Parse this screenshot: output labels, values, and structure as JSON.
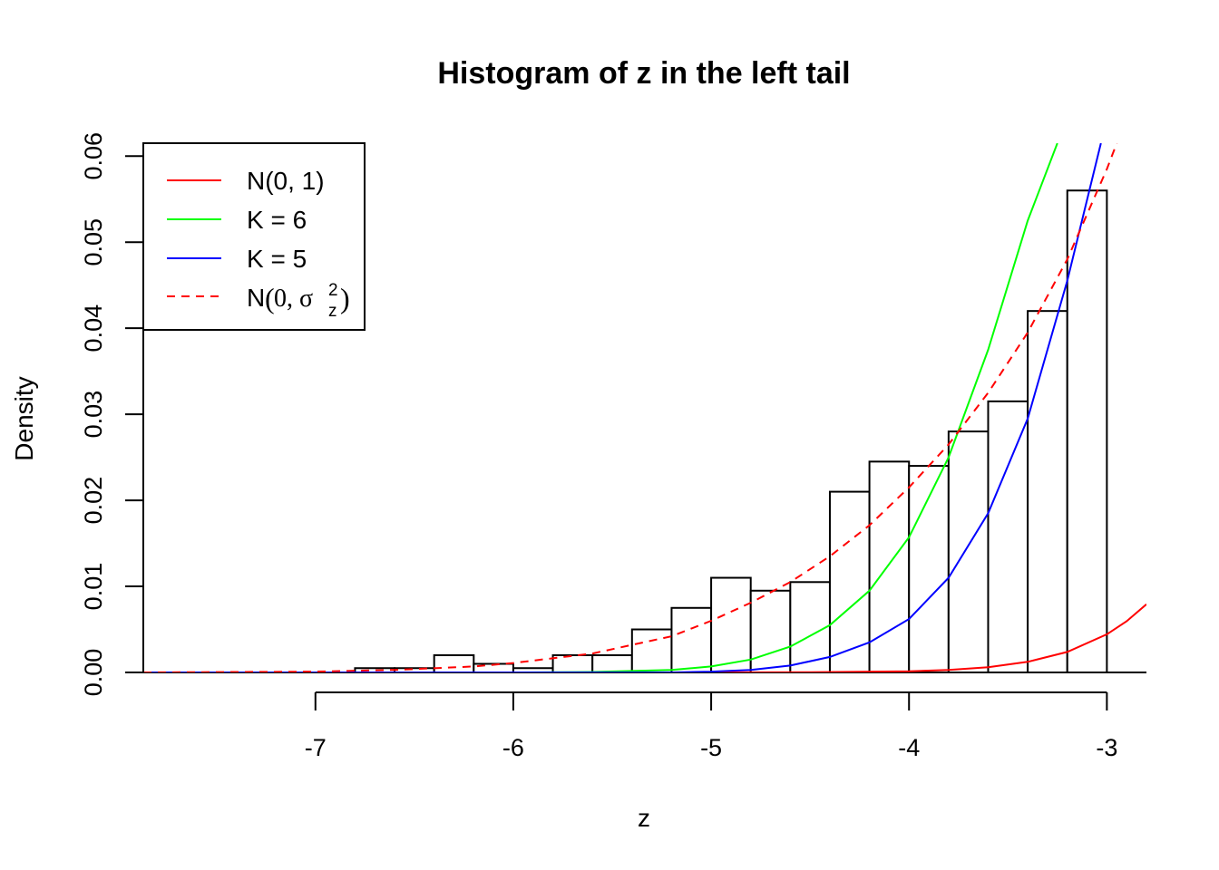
{
  "chart_data": {
    "type": "histogram",
    "title": "Histogram of z in the left tail",
    "xlabel": "z",
    "ylabel": "Density",
    "xlim": [
      -7.87,
      -2.8
    ],
    "ylim": [
      0,
      0.0615
    ],
    "x_ticks": [
      -7,
      -6,
      -5,
      -4,
      -3
    ],
    "y_ticks": [
      0.0,
      0.01,
      0.02,
      0.03,
      0.04,
      0.05,
      0.06
    ],
    "x_tick_labels": [
      "-7",
      "-6",
      "-5",
      "-4",
      "-3"
    ],
    "y_tick_labels": [
      "0.00",
      "0.01",
      "0.02",
      "0.03",
      "0.04",
      "0.05",
      "0.06"
    ],
    "bin_width": 0.2,
    "bins": [
      {
        "x0": -6.8,
        "x1": -6.6,
        "density": 0.0005
      },
      {
        "x0": -6.6,
        "x1": -6.4,
        "density": 0.0005
      },
      {
        "x0": -6.4,
        "x1": -6.2,
        "density": 0.002
      },
      {
        "x0": -6.2,
        "x1": -6.0,
        "density": 0.001
      },
      {
        "x0": -6.0,
        "x1": -5.8,
        "density": 0.0005
      },
      {
        "x0": -5.8,
        "x1": -5.6,
        "density": 0.002
      },
      {
        "x0": -5.6,
        "x1": -5.4,
        "density": 0.002
      },
      {
        "x0": -5.4,
        "x1": -5.2,
        "density": 0.005
      },
      {
        "x0": -5.2,
        "x1": -5.0,
        "density": 0.0075
      },
      {
        "x0": -5.0,
        "x1": -4.8,
        "density": 0.011
      },
      {
        "x0": -4.8,
        "x1": -4.6,
        "density": 0.0095
      },
      {
        "x0": -4.6,
        "x1": -4.4,
        "density": 0.0105
      },
      {
        "x0": -4.4,
        "x1": -4.2,
        "density": 0.021
      },
      {
        "x0": -4.2,
        "x1": -4.0,
        "density": 0.0245
      },
      {
        "x0": -4.0,
        "x1": -3.8,
        "density": 0.024
      },
      {
        "x0": -3.8,
        "x1": -3.6,
        "density": 0.028
      },
      {
        "x0": -3.6,
        "x1": -3.4,
        "density": 0.0315
      },
      {
        "x0": -3.4,
        "x1": -3.2,
        "density": 0.042
      },
      {
        "x0": -3.2,
        "x1": -3.0,
        "density": 0.056
      }
    ],
    "series": [
      {
        "name": "N(0, 1)",
        "color": "#ff0000",
        "dash": "solid",
        "x": [
          -7.87,
          -7.0,
          -6.0,
          -5.0,
          -4.5,
          -4.0,
          -3.8,
          -3.6,
          -3.4,
          -3.2,
          -3.0,
          -2.9,
          -2.8
        ],
        "y": [
          0,
          0,
          0,
          1.5e-06,
          1.6e-05,
          0.000134,
          0.00029,
          0.00061,
          0.00123,
          0.00238,
          0.00443,
          0.00595,
          0.00792
        ]
      },
      {
        "name": "K = 6",
        "color": "#00ff00",
        "dash": "solid",
        "x": [
          -7.87,
          -6.0,
          -5.6,
          -5.2,
          -5.0,
          -4.8,
          -4.6,
          -4.4,
          -4.2,
          -4.0,
          -3.8,
          -3.6,
          -3.4,
          -3.25
        ],
        "y": [
          0,
          0,
          5e-05,
          0.0003,
          0.0007,
          0.0015,
          0.003,
          0.0055,
          0.0095,
          0.0157,
          0.025,
          0.0375,
          0.0525,
          0.0615
        ]
      },
      {
        "name": "K = 5",
        "color": "#0000ff",
        "dash": "solid",
        "x": [
          -7.87,
          -5.2,
          -5.0,
          -4.8,
          -4.6,
          -4.4,
          -4.2,
          -4.0,
          -3.8,
          -3.6,
          -3.4,
          -3.2,
          -3.03
        ],
        "y": [
          0,
          0,
          0.0001,
          0.0003,
          0.0008,
          0.0018,
          0.0035,
          0.0062,
          0.011,
          0.0185,
          0.0295,
          0.0455,
          0.0615
        ]
      },
      {
        "name": "N(0, σ_z^2)",
        "color": "#ff0000",
        "dash": "dashed",
        "x": [
          -7.87,
          -7.0,
          -6.6,
          -6.2,
          -6.0,
          -5.6,
          -5.2,
          -5.0,
          -4.8,
          -4.6,
          -4.4,
          -4.2,
          -4.0,
          -3.8,
          -3.6,
          -3.4,
          -3.2,
          -3.0,
          -2.95
        ],
        "y": [
          0,
          0.0001,
          0.0003,
          0.0007,
          0.0011,
          0.0022,
          0.0042,
          0.006,
          0.0081,
          0.0105,
          0.0135,
          0.0171,
          0.0215,
          0.0265,
          0.0325,
          0.0395,
          0.048,
          0.0585,
          0.0615
        ]
      }
    ],
    "legend": {
      "position": "top-left",
      "entries": [
        {
          "label": "N(0, 1)",
          "color": "#ff0000",
          "dash": "solid"
        },
        {
          "label": "K = 6",
          "color": "#00ff00",
          "dash": "solid"
        },
        {
          "label": "K = 5",
          "color": "#0000ff",
          "dash": "solid"
        },
        {
          "label_prefix": "N",
          "label_open": "(",
          "label_mid": "0, σ",
          "label_sup": "2",
          "label_sub": "z",
          "label_close": ")",
          "color": "#ff0000",
          "dash": "dashed"
        }
      ]
    },
    "grid": false
  }
}
